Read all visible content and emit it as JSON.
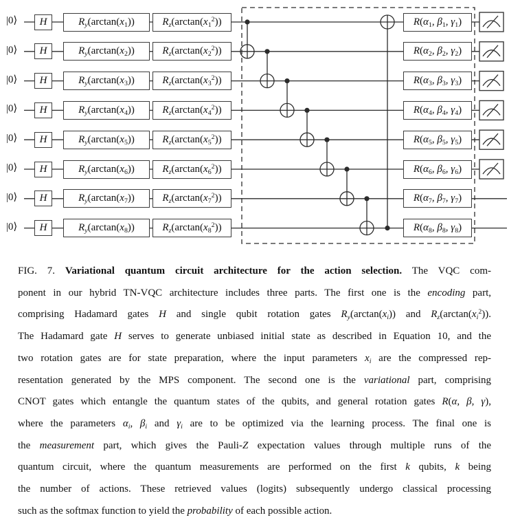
{
  "circuit": {
    "num_qubits": 8,
    "hadamard_label": "*H*",
    "qubits": [
      {
        "init": "|0⟩",
        "ry": "*R_y*(arctan(*x*_1))",
        "rz": "*R_z*(arctan(*x*_1^2))",
        "rot": "*R*(*α*_1, *β*_1, *γ*_1)",
        "measured": true
      },
      {
        "init": "|0⟩",
        "ry": "*R_y*(arctan(*x*_2))",
        "rz": "*R_z*(arctan(*x*_2^2))",
        "rot": "*R*(*α*_2, *β*_2, *γ*_2)",
        "measured": true
      },
      {
        "init": "|0⟩",
        "ry": "*R_y*(arctan(*x*_3))",
        "rz": "*R_z*(arctan(*x*_3^2))",
        "rot": "*R*(*α*_3, *β*_3, *γ*_3)",
        "measured": true
      },
      {
        "init": "|0⟩",
        "ry": "*R_y*(arctan(*x*_4))",
        "rz": "*R_z*(arctan(*x*_4^2))",
        "rot": "*R*(*α*_4, *β*_4, *γ*_4)",
        "measured": true
      },
      {
        "init": "|0⟩",
        "ry": "*R_y*(arctan(*x*_5))",
        "rz": "*R_z*(arctan(*x*_5^2))",
        "rot": "*R*(*α*_5, *β*_5, *γ*_5)",
        "measured": true
      },
      {
        "init": "|0⟩",
        "ry": "*R_y*(arctan(*x*_6))",
        "rz": "*R_z*(arctan(*x*_6^2))",
        "rot": "*R*(*α*_6, *β*_6, *γ*_6)",
        "measured": true
      },
      {
        "init": "|0⟩",
        "ry": "*R_y*(arctan(*x*_7))",
        "rz": "*R_z*(arctan(*x*_7^2))",
        "rot": "*R*(*α*_7, *β*_7, *γ*_7)",
        "measured": false
      },
      {
        "init": "|0⟩",
        "ry": "*R_y*(arctan(*x*_8))",
        "rz": "*R_z*(arctan(*x*_8^2))",
        "rot": "*R*(*α*_8, *β*_8, *γ*_8)",
        "measured": false
      }
    ],
    "cnots": [
      {
        "control": 1,
        "target": 2
      },
      {
        "control": 2,
        "target": 3
      },
      {
        "control": 3,
        "target": 4
      },
      {
        "control": 4,
        "target": 5
      },
      {
        "control": 5,
        "target": 6
      },
      {
        "control": 6,
        "target": 7
      },
      {
        "control": 7,
        "target": 8
      },
      {
        "control": 8,
        "target": 1
      }
    ],
    "colors": {
      "wire": "#2b2b2b",
      "box_border": "#3a3a3a",
      "text": "#111111",
      "background": "#ffffff"
    }
  },
  "caption": {
    "lines": [
      "FIG. 7. **Variational quantum circuit architecture for the action selection.** The VQC com-",
      "ponent in our hybrid TN-VQC architecture includes three parts. The first one is the *encoding* part,",
      "comprising Hadamard gates *H* and single qubit rotation gates *R_y*(arctan(*x_i*)) and *R_z*(arctan(*x_i*^2)).",
      "The Hadamard gate *H* serves to generate unbiased initial state as described in Equation 10, and the",
      "two rotation gates are for state preparation, where the input parameters *x_i* are the compressed rep-",
      "resentation generated by the MPS component. The second one is the *variational* part, comprising",
      "CNOT gates which entangle the quantum states of the qubits, and general rotation gates *R*(*α*, *β*, *γ*),",
      "where the parameters *α_i*, *β_i* and *γ_i* are to be optimized via the learning process. The final one is",
      "the *measurement* part, which gives the Pauli-*Z* expectation values through multiple runs of the",
      "quantum circuit, where the quantum measurements are performed on the first *k* qubits, *k* being",
      "the number of actions. These retrieved values (logits) subsequently undergo classical processing",
      "such as the softmax function to yield the *probability* of each possible action."
    ]
  }
}
